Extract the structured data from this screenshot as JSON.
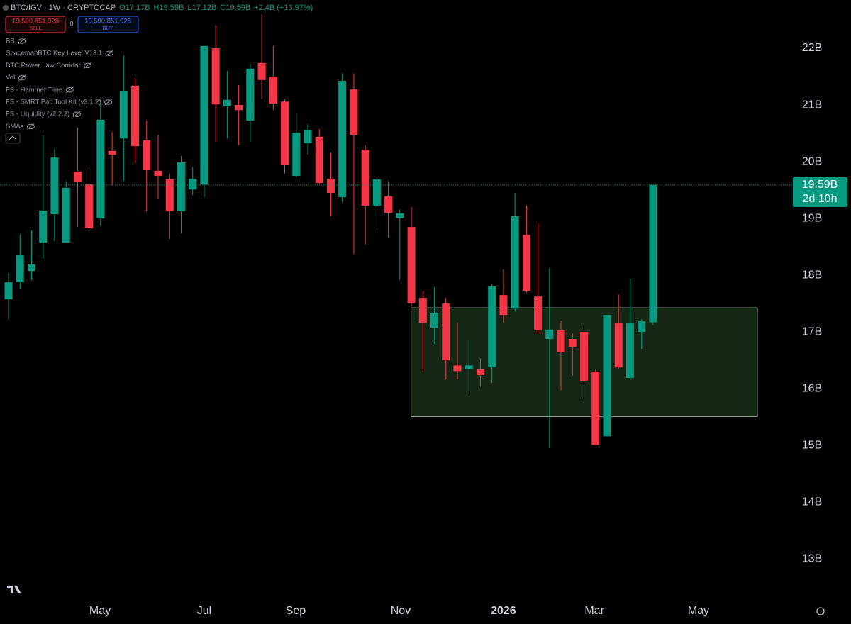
{
  "header": {
    "symbol": "BTC/IGV · 1W · CRYPTOCAP",
    "ohlc": [
      "O17.17B",
      "H19.59B",
      "L17.12B",
      "C19.59B",
      "+2.4B (+13.97%)"
    ],
    "sell_price": "19,590,851,928",
    "sell_label": "SELL",
    "spread": "0",
    "buy_price": "19,590,851,928",
    "buy_label": "BUY",
    "indicators": [
      "BB",
      "SpacemanBTC Key Level V13.1",
      "BTC Power Law Corridor",
      "Vol",
      "FS - Hammer Time",
      "FS - SMRT Pac Tool Kit (v3.1.2)",
      "FS - Liquidity (v2.2.2)",
      "SMAs"
    ]
  },
  "chart_data": {
    "type": "candlestick",
    "up_color": "#089981",
    "down_color": "#f23645",
    "open": [
      17.575,
      17.875,
      18.075,
      18.575,
      19.075,
      18.575,
      19.825,
      19.6,
      19.0,
      20.19,
      20.41,
      21.34,
      20.375,
      19.84,
      19.69,
      19.125,
      19.51,
      19.6,
      22.0,
      20.975,
      21.0,
      20.725,
      21.74,
      21.5,
      21.06,
      19.75,
      20.325,
      20.44,
      19.7,
      19.375,
      21.275,
      20.21,
      19.225,
      19.39,
      19.01,
      18.85,
      17.6,
      17.075,
      17.5,
      16.41,
      16.35,
      16.34,
      16.375,
      17.65,
      17.41,
      18.71,
      17.625,
      16.875,
      17.025,
      16.875,
      17.0,
      16.3,
      15.16,
      17.15,
      16.19,
      17.0,
      17.17
    ],
    "high": [
      18.04,
      18.725,
      18.79,
      20.475,
      20.225,
      19.66,
      20.6,
      19.9,
      21.1,
      20.525,
      21.875,
      21.475,
      20.725,
      20.475,
      19.79,
      20.1,
      19.91,
      22.04,
      22.41,
      21.6,
      21.35,
      21.725,
      22.6,
      22.04,
      21.1,
      20.85,
      20.66,
      20.575,
      20.16,
      21.56,
      21.56,
      20.29,
      19.725,
      19.66,
      19.16,
      19.2,
      17.725,
      17.79,
      17.6,
      17.16,
      16.85,
      16.54,
      17.85,
      18.1,
      19.45,
      19.225,
      18.91,
      18.125,
      17.2,
      16.975,
      17.125,
      16.35,
      17.3,
      17.66,
      17.94,
      17.225,
      19.59
    ],
    "low": [
      17.225,
      17.75,
      17.91,
      18.29,
      18.6,
      18.575,
      18.85,
      18.79,
      18.875,
      19.575,
      19.66,
      19.975,
      19.125,
      19.35,
      18.64,
      18.74,
      19.41,
      19.375,
      20.35,
      20.41,
      20.29,
      20.35,
      21.1,
      20.91,
      19.79,
      19.725,
      20.125,
      19.6,
      19.04,
      19.29,
      18.375,
      18.54,
      18.79,
      18.66,
      17.91,
      17.45,
      16.29,
      16.79,
      16.16,
      16.16,
      15.91,
      16.04,
      16.1,
      17.16,
      17.35,
      17.69,
      16.975,
      14.95,
      15.975,
      16.225,
      15.79,
      15.01,
      15.16,
      16.35,
      16.15,
      16.7,
      17.12
    ],
    "close": [
      17.875,
      18.35,
      18.19,
      19.14,
      20.075,
      19.54,
      19.65,
      18.825,
      20.74,
      20.125,
      21.25,
      20.275,
      19.85,
      19.75,
      19.125,
      19.99,
      19.7,
      22.04,
      21.01,
      21.09,
      20.91,
      21.64,
      21.44,
      21.025,
      19.95,
      20.51,
      20.56,
      19.625,
      19.45,
      21.425,
      20.475,
      19.225,
      19.69,
      19.1,
      19.09,
      17.51,
      17.16,
      17.34,
      16.5,
      16.31,
      16.41,
      16.24,
      17.8,
      17.3,
      19.04,
      17.725,
      17.025,
      17.04,
      16.64,
      16.74,
      16.14,
      15.01,
      17.3,
      16.375,
      17.15,
      17.19,
      19.59
    ],
    "zone": {
      "top": 17.425,
      "bottom": 15.51,
      "x_start": 34.97,
      "x_end": 65.06
    },
    "price_label": "19.59B",
    "countdown": "2d 10h",
    "xlim": [
      -0.74,
      67.65
    ],
    "ylim": [
      12.29,
      22.85
    ],
    "yticks": [
      {
        "value": 13,
        "label": "13B"
      },
      {
        "value": 14,
        "label": "14B"
      },
      {
        "value": 15,
        "label": "15B"
      },
      {
        "value": 16,
        "label": "16B"
      },
      {
        "value": 17,
        "label": "17B"
      },
      {
        "value": 18,
        "label": "18B"
      },
      {
        "value": 19,
        "label": "19B"
      },
      {
        "value": 20,
        "label": "20B"
      },
      {
        "value": 21,
        "label": "21B"
      },
      {
        "value": 22,
        "label": "22B"
      }
    ],
    "xticks": [
      {
        "value": 7.95,
        "label": "May"
      },
      {
        "value": 17.0,
        "label": "Jul"
      },
      {
        "value": 24.95,
        "label": "Sep"
      },
      {
        "value": 34.07,
        "label": "Nov"
      },
      {
        "value": 43.0,
        "label": "2026"
      },
      {
        "value": 50.9,
        "label": "Mar"
      },
      {
        "value": 59.95,
        "label": "May"
      }
    ]
  }
}
